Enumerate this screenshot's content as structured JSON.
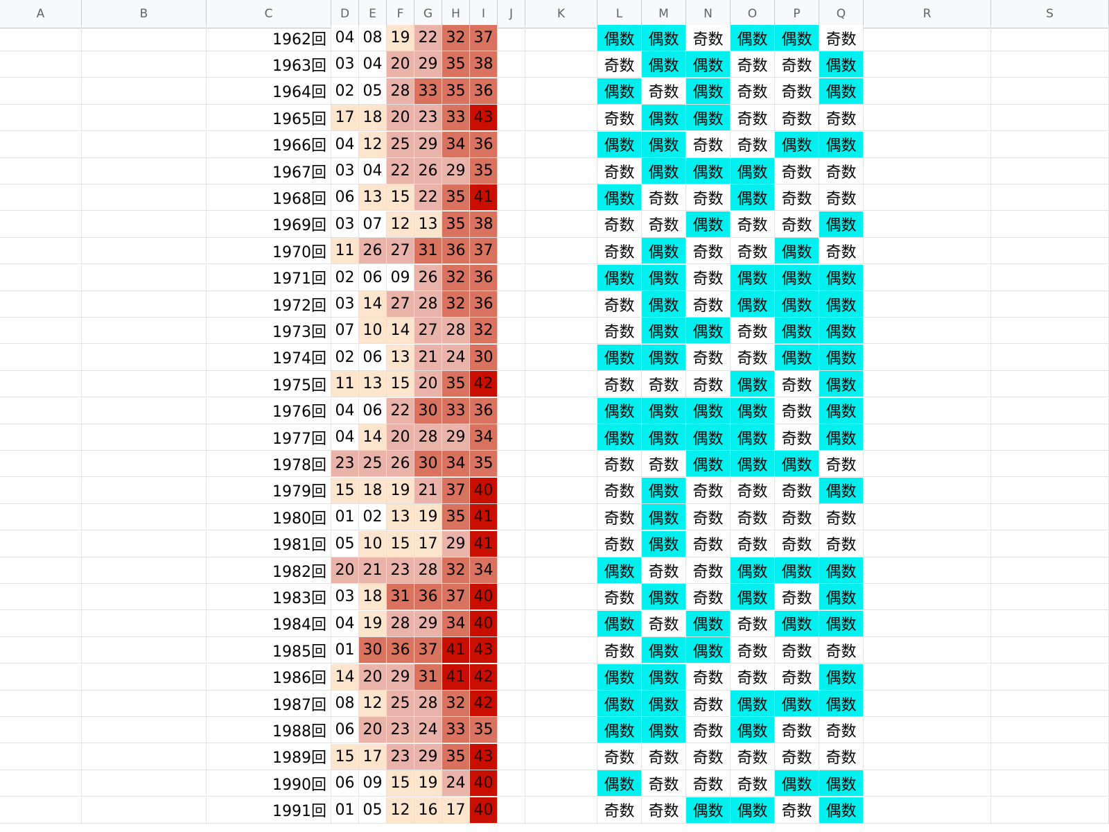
{
  "sheet": {
    "columns": [
      "A",
      "B",
      "C",
      "D",
      "E",
      "F",
      "G",
      "H",
      "I",
      "J",
      "K",
      "L",
      "M",
      "N",
      "O",
      "P",
      "Q",
      "R",
      "S"
    ],
    "heat_colors": {
      "1_9": "#ffffff",
      "10_19": "#fde5cd",
      "20_29": "#e9b3a9",
      "30_39": "#d9735f",
      "40_43": "#c90f00"
    },
    "parity_colors": {
      "even_bg": "#00efef",
      "odd_bg": "#ffffff"
    },
    "rows": [
      {
        "label": "1962回",
        "nums": [
          "04",
          "08",
          "19",
          "22",
          "32",
          "37"
        ],
        "parity": [
          "偶数",
          "偶数",
          "奇数",
          "偶数",
          "偶数",
          "奇数"
        ]
      },
      {
        "label": "1963回",
        "nums": [
          "03",
          "04",
          "20",
          "29",
          "35",
          "38"
        ],
        "parity": [
          "奇数",
          "偶数",
          "偶数",
          "奇数",
          "奇数",
          "偶数"
        ]
      },
      {
        "label": "1964回",
        "nums": [
          "02",
          "05",
          "28",
          "33",
          "35",
          "36"
        ],
        "parity": [
          "偶数",
          "奇数",
          "偶数",
          "奇数",
          "奇数",
          "偶数"
        ]
      },
      {
        "label": "1965回",
        "nums": [
          "17",
          "18",
          "20",
          "23",
          "33",
          "43"
        ],
        "parity": [
          "奇数",
          "偶数",
          "偶数",
          "奇数",
          "奇数",
          "奇数"
        ]
      },
      {
        "label": "1966回",
        "nums": [
          "04",
          "12",
          "25",
          "29",
          "34",
          "36"
        ],
        "parity": [
          "偶数",
          "偶数",
          "奇数",
          "奇数",
          "偶数",
          "偶数"
        ]
      },
      {
        "label": "1967回",
        "nums": [
          "03",
          "04",
          "22",
          "26",
          "29",
          "35"
        ],
        "parity": [
          "奇数",
          "偶数",
          "偶数",
          "偶数",
          "奇数",
          "奇数"
        ]
      },
      {
        "label": "1968回",
        "nums": [
          "06",
          "13",
          "15",
          "22",
          "35",
          "41"
        ],
        "parity": [
          "偶数",
          "奇数",
          "奇数",
          "偶数",
          "奇数",
          "奇数"
        ]
      },
      {
        "label": "1969回",
        "nums": [
          "03",
          "07",
          "12",
          "13",
          "35",
          "38"
        ],
        "parity": [
          "奇数",
          "奇数",
          "偶数",
          "奇数",
          "奇数",
          "偶数"
        ]
      },
      {
        "label": "1970回",
        "nums": [
          "11",
          "26",
          "27",
          "31",
          "36",
          "37"
        ],
        "parity": [
          "奇数",
          "偶数",
          "奇数",
          "奇数",
          "偶数",
          "奇数"
        ]
      },
      {
        "label": "1971回",
        "nums": [
          "02",
          "06",
          "09",
          "26",
          "32",
          "36"
        ],
        "parity": [
          "偶数",
          "偶数",
          "奇数",
          "偶数",
          "偶数",
          "偶数"
        ]
      },
      {
        "label": "1972回",
        "nums": [
          "03",
          "14",
          "27",
          "28",
          "32",
          "36"
        ],
        "parity": [
          "奇数",
          "偶数",
          "奇数",
          "偶数",
          "偶数",
          "偶数"
        ]
      },
      {
        "label": "1973回",
        "nums": [
          "07",
          "10",
          "14",
          "27",
          "28",
          "32"
        ],
        "parity": [
          "奇数",
          "偶数",
          "偶数",
          "奇数",
          "偶数",
          "偶数"
        ]
      },
      {
        "label": "1974回",
        "nums": [
          "02",
          "06",
          "13",
          "21",
          "24",
          "30"
        ],
        "parity": [
          "偶数",
          "偶数",
          "奇数",
          "奇数",
          "偶数",
          "偶数"
        ]
      },
      {
        "label": "1975回",
        "nums": [
          "11",
          "13",
          "15",
          "20",
          "35",
          "42"
        ],
        "parity": [
          "奇数",
          "奇数",
          "奇数",
          "偶数",
          "奇数",
          "偶数"
        ]
      },
      {
        "label": "1976回",
        "nums": [
          "04",
          "06",
          "22",
          "30",
          "33",
          "36"
        ],
        "parity": [
          "偶数",
          "偶数",
          "偶数",
          "偶数",
          "奇数",
          "偶数"
        ]
      },
      {
        "label": "1977回",
        "nums": [
          "04",
          "14",
          "20",
          "28",
          "29",
          "34"
        ],
        "parity": [
          "偶数",
          "偶数",
          "偶数",
          "偶数",
          "奇数",
          "偶数"
        ]
      },
      {
        "label": "1978回",
        "nums": [
          "23",
          "25",
          "26",
          "30",
          "34",
          "35"
        ],
        "parity": [
          "奇数",
          "奇数",
          "偶数",
          "偶数",
          "偶数",
          "奇数"
        ]
      },
      {
        "label": "1979回",
        "nums": [
          "15",
          "18",
          "19",
          "21",
          "37",
          "40"
        ],
        "parity": [
          "奇数",
          "偶数",
          "奇数",
          "奇数",
          "奇数",
          "偶数"
        ]
      },
      {
        "label": "1980回",
        "nums": [
          "01",
          "02",
          "13",
          "19",
          "35",
          "41"
        ],
        "parity": [
          "奇数",
          "偶数",
          "奇数",
          "奇数",
          "奇数",
          "奇数"
        ]
      },
      {
        "label": "1981回",
        "nums": [
          "05",
          "10",
          "15",
          "17",
          "29",
          "41"
        ],
        "parity": [
          "奇数",
          "偶数",
          "奇数",
          "奇数",
          "奇数",
          "奇数"
        ]
      },
      {
        "label": "1982回",
        "nums": [
          "20",
          "21",
          "23",
          "28",
          "32",
          "34"
        ],
        "parity": [
          "偶数",
          "奇数",
          "奇数",
          "偶数",
          "偶数",
          "偶数"
        ]
      },
      {
        "label": "1983回",
        "nums": [
          "03",
          "18",
          "31",
          "36",
          "37",
          "40"
        ],
        "parity": [
          "奇数",
          "偶数",
          "奇数",
          "偶数",
          "奇数",
          "偶数"
        ]
      },
      {
        "label": "1984回",
        "nums": [
          "04",
          "19",
          "28",
          "29",
          "34",
          "40"
        ],
        "parity": [
          "偶数",
          "奇数",
          "偶数",
          "奇数",
          "偶数",
          "偶数"
        ]
      },
      {
        "label": "1985回",
        "nums": [
          "01",
          "30",
          "36",
          "37",
          "41",
          "43"
        ],
        "parity": [
          "奇数",
          "偶数",
          "偶数",
          "奇数",
          "奇数",
          "奇数"
        ]
      },
      {
        "label": "1986回",
        "nums": [
          "14",
          "20",
          "29",
          "31",
          "41",
          "42"
        ],
        "parity": [
          "偶数",
          "偶数",
          "奇数",
          "奇数",
          "奇数",
          "偶数"
        ]
      },
      {
        "label": "1987回",
        "nums": [
          "08",
          "12",
          "25",
          "28",
          "32",
          "42"
        ],
        "parity": [
          "偶数",
          "偶数",
          "奇数",
          "偶数",
          "偶数",
          "偶数"
        ]
      },
      {
        "label": "1988回",
        "nums": [
          "06",
          "20",
          "23",
          "24",
          "33",
          "35"
        ],
        "parity": [
          "偶数",
          "偶数",
          "奇数",
          "偶数",
          "奇数",
          "奇数"
        ]
      },
      {
        "label": "1989回",
        "nums": [
          "15",
          "17",
          "23",
          "29",
          "35",
          "43"
        ],
        "parity": [
          "奇数",
          "奇数",
          "奇数",
          "奇数",
          "奇数",
          "奇数"
        ]
      },
      {
        "label": "1990回",
        "nums": [
          "06",
          "09",
          "15",
          "19",
          "24",
          "40"
        ],
        "parity": [
          "偶数",
          "奇数",
          "奇数",
          "奇数",
          "偶数",
          "偶数"
        ]
      },
      {
        "label": "1991回",
        "nums": [
          "01",
          "05",
          "12",
          "16",
          "17",
          "40"
        ],
        "parity": [
          "奇数",
          "奇数",
          "偶数",
          "偶数",
          "奇数",
          "偶数"
        ]
      }
    ]
  }
}
